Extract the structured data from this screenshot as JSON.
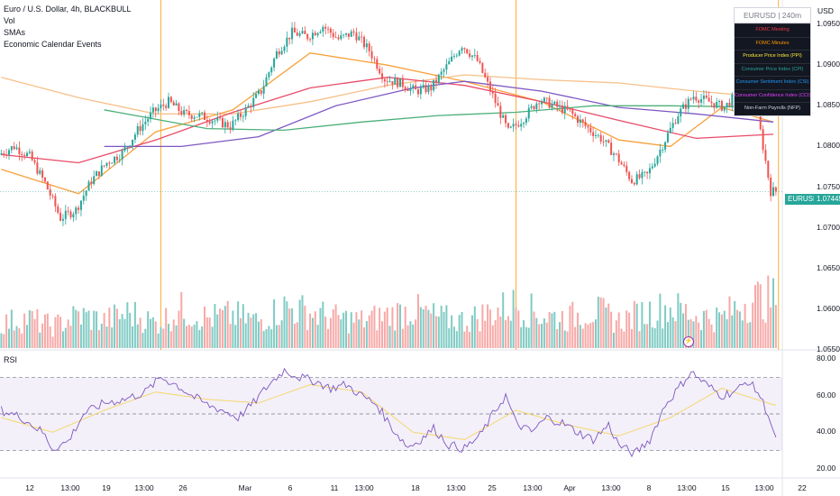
{
  "legend": {
    "title": "Euro / U.S. Dollar, 4h, BLACKBULL",
    "vol": "Vol",
    "smas": "SMAs",
    "calendar": "Economic Calendar Events"
  },
  "currency": "USD",
  "rsi_title": "RSI",
  "symbol_tag": "EURUSD",
  "last_price": "1.07445",
  "calendar_panel": {
    "header": "EURUSD | 240m",
    "events": [
      {
        "label": "FOMC Meeting",
        "color": "#f23645"
      },
      {
        "label": "FOMC Minutes",
        "color": "#ff9800"
      },
      {
        "label": "Producer Price Index (PPI)",
        "color": "#ffeb3b"
      },
      {
        "label": "Consumer Price Index (CPI)",
        "color": "#26a69a"
      },
      {
        "label": "Consumer Sentiment Index (CSI)",
        "color": "#2196f3"
      },
      {
        "label": "Consumer Confidence Index (CCI)",
        "color": "#e040fb"
      },
      {
        "label": "Non-Farm Payrolls (NFP)",
        "color": "#d1d4dc"
      }
    ]
  },
  "colors": {
    "up": "#26a69a",
    "down": "#ef5350",
    "vol_up": "#80cbc4",
    "vol_down": "#f7a9a7",
    "sma_orange": "#f7a13b",
    "sma_orange_light": "#f7c08a",
    "sma_red": "#e84b68",
    "sma_purple": "#7e57c2",
    "sma_green": "#4caf7a",
    "rsi_line": "#7e57c2",
    "rsi_ma": "#f5d76e",
    "event_line": "#ff9800"
  },
  "chart_data": [
    {
      "type": "candlestick",
      "title": "Euro / U.S. Dollar, 4h, BLACKBULL",
      "ylim": [
        1.055,
        1.098
      ],
      "y_ticks": [
        "1.09500",
        "1.09000",
        "1.08500",
        "1.08000",
        "1.07500",
        "1.07000",
        "1.06500",
        "1.06000",
        "1.05500"
      ],
      "x_ticks": [
        "12",
        "13:00",
        "19",
        "13:00",
        "26",
        "Mar",
        "6",
        "11",
        "13:00",
        "18",
        "13:00",
        "25",
        "13:00",
        "Apr",
        "13:00",
        "8",
        "13:00",
        "15",
        "13:00",
        "22"
      ],
      "last_price": 1.07445,
      "close_path": [
        [
          0,
          1.079
        ],
        [
          6,
          1.08
        ],
        [
          12,
          1.0788
        ],
        [
          18,
          1.0755
        ],
        [
          24,
          1.0712
        ],
        [
          30,
          1.0722
        ],
        [
          36,
          1.0758
        ],
        [
          42,
          1.078
        ],
        [
          48,
          1.0792
        ],
        [
          54,
          1.082
        ],
        [
          60,
          1.0842
        ],
        [
          66,
          1.0855
        ],
        [
          72,
          1.084
        ],
        [
          78,
          1.0838
        ],
        [
          84,
          1.0832
        ],
        [
          90,
          1.0825
        ],
        [
          96,
          1.0845
        ],
        [
          102,
          1.0868
        ],
        [
          108,
          1.0915
        ],
        [
          114,
          1.094
        ],
        [
          120,
          1.0935
        ],
        [
          126,
          1.0948
        ],
        [
          132,
          1.0932
        ],
        [
          138,
          1.094
        ],
        [
          144,
          1.0918
        ],
        [
          150,
          1.0883
        ],
        [
          156,
          1.0878
        ],
        [
          162,
          1.0868
        ],
        [
          168,
          1.0872
        ],
        [
          174,
          1.0898
        ],
        [
          180,
          1.0925
        ],
        [
          186,
          1.0905
        ],
        [
          192,
          1.0862
        ],
        [
          198,
          1.0818
        ],
        [
          204,
          1.0835
        ],
        [
          210,
          1.0858
        ],
        [
          216,
          1.085
        ],
        [
          222,
          1.0842
        ],
        [
          228,
          1.0825
        ],
        [
          234,
          1.081
        ],
        [
          240,
          1.0788
        ],
        [
          246,
          1.0758
        ],
        [
          252,
          1.0765
        ],
        [
          258,
          1.0802
        ],
        [
          264,
          1.084
        ],
        [
          270,
          1.0862
        ],
        [
          276,
          1.0855
        ],
        [
          282,
          1.0848
        ],
        [
          288,
          1.0868
        ],
        [
          294,
          1.0855
        ],
        [
          300,
          1.0745
        ]
      ],
      "series": [
        {
          "name": "SMA fast",
          "color": "#f7a13b",
          "points": [
            [
              0,
              1.0772
            ],
            [
              30,
              1.0742
            ],
            [
              60,
              1.0818
            ],
            [
              90,
              1.0845
            ],
            [
              120,
              1.0915
            ],
            [
              150,
              1.09
            ],
            [
              180,
              1.088
            ],
            [
              210,
              1.0855
            ],
            [
              240,
              1.0808
            ],
            [
              260,
              1.08
            ],
            [
              280,
              1.0848
            ],
            [
              300,
              1.083
            ]
          ]
        },
        {
          "name": "SMA slow (light)",
          "color": "#f7c08a",
          "points": [
            [
              0,
              1.0885
            ],
            [
              30,
              1.086
            ],
            [
              60,
              1.084
            ],
            [
              90,
              1.084
            ],
            [
              120,
              1.0855
            ],
            [
              150,
              1.0875
            ],
            [
              180,
              1.0888
            ],
            [
              210,
              1.0882
            ],
            [
              240,
              1.0878
            ],
            [
              270,
              1.0868
            ],
            [
              300,
              1.086
            ]
          ]
        },
        {
          "name": "SMA mid",
          "color": "#e84b68",
          "points": [
            [
              0,
              1.079
            ],
            [
              30,
              1.078
            ],
            [
              60,
              1.0808
            ],
            [
              90,
              1.0842
            ],
            [
              120,
              1.0872
            ],
            [
              150,
              1.0885
            ],
            [
              180,
              1.0875
            ],
            [
              210,
              1.0855
            ],
            [
              240,
              1.0832
            ],
            [
              270,
              1.081
            ],
            [
              300,
              1.0815
            ]
          ]
        },
        {
          "name": "SMA long",
          "color": "#7e57c2",
          "points": [
            [
              40,
              1.08
            ],
            [
              70,
              1.08
            ],
            [
              100,
              1.0812
            ],
            [
              130,
              1.085
            ],
            [
              160,
              1.0872
            ],
            [
              180,
              1.088
            ],
            [
              210,
              1.0868
            ],
            [
              240,
              1.0848
            ],
            [
              270,
              1.084
            ],
            [
              300,
              1.083
            ]
          ]
        },
        {
          "name": "SMA longest",
          "color": "#4caf7a",
          "points": [
            [
              40,
              1.0845
            ],
            [
              80,
              1.0822
            ],
            [
              110,
              1.082
            ],
            [
              140,
              1.083
            ],
            [
              170,
              1.0838
            ],
            [
              200,
              1.0842
            ],
            [
              230,
              1.085
            ],
            [
              260,
              1.085
            ],
            [
              300,
              1.0848
            ]
          ]
        }
      ],
      "event_lines_bar_index": [
        62,
        200,
        302
      ]
    },
    {
      "type": "bar",
      "title": "Vol",
      "volume_trend": [
        0.45,
        0.55,
        0.4,
        0.6,
        0.5,
        0.65,
        0.45,
        0.7,
        0.55,
        0.6,
        0.5,
        0.75,
        0.65,
        0.55,
        0.5,
        0.6,
        0.7,
        0.55,
        0.5,
        0.65,
        0.8,
        0.6,
        0.55,
        0.7,
        0.5,
        0.65,
        0.75,
        0.6,
        0.55,
        0.9
      ]
    },
    {
      "type": "line",
      "title": "RSI",
      "ylim": [
        15,
        85
      ],
      "y_ticks": [
        "80.00",
        "60.00",
        "40.00",
        "20.00"
      ],
      "upper_band": 70,
      "lower_band": 30,
      "mid_band": 50,
      "rsi_path": [
        [
          0,
          52
        ],
        [
          8,
          48
        ],
        [
          16,
          40
        ],
        [
          20,
          31
        ],
        [
          26,
          35
        ],
        [
          32,
          50
        ],
        [
          40,
          56
        ],
        [
          48,
          58
        ],
        [
          56,
          62
        ],
        [
          62,
          70
        ],
        [
          68,
          66
        ],
        [
          74,
          60
        ],
        [
          80,
          55
        ],
        [
          86,
          52
        ],
        [
          92,
          48
        ],
        [
          98,
          56
        ],
        [
          104,
          66
        ],
        [
          110,
          74
        ],
        [
          116,
          70
        ],
        [
          122,
          68
        ],
        [
          128,
          64
        ],
        [
          134,
          66
        ],
        [
          140,
          60
        ],
        [
          146,
          55
        ],
        [
          152,
          42
        ],
        [
          158,
          32
        ],
        [
          162,
          35
        ],
        [
          168,
          42
        ],
        [
          174,
          33
        ],
        [
          180,
          31
        ],
        [
          186,
          38
        ],
        [
          192,
          52
        ],
        [
          196,
          60
        ],
        [
          200,
          45
        ],
        [
          206,
          40
        ],
        [
          212,
          48
        ],
        [
          218,
          45
        ],
        [
          224,
          40
        ],
        [
          230,
          36
        ],
        [
          236,
          44
        ],
        [
          240,
          33
        ],
        [
          246,
          28
        ],
        [
          252,
          36
        ],
        [
          258,
          55
        ],
        [
          262,
          62
        ],
        [
          268,
          73
        ],
        [
          274,
          66
        ],
        [
          280,
          60
        ],
        [
          286,
          63
        ],
        [
          290,
          68
        ],
        [
          294,
          62
        ],
        [
          298,
          50
        ],
        [
          302,
          30
        ]
      ],
      "ma_path": [
        [
          0,
          48
        ],
        [
          20,
          40
        ],
        [
          40,
          52
        ],
        [
          60,
          62
        ],
        [
          80,
          58
        ],
        [
          100,
          56
        ],
        [
          120,
          66
        ],
        [
          140,
          62
        ],
        [
          160,
          40
        ],
        [
          180,
          36
        ],
        [
          200,
          52
        ],
        [
          220,
          44
        ],
        [
          240,
          38
        ],
        [
          260,
          48
        ],
        [
          280,
          64
        ],
        [
          300,
          55
        ]
      ]
    }
  ]
}
